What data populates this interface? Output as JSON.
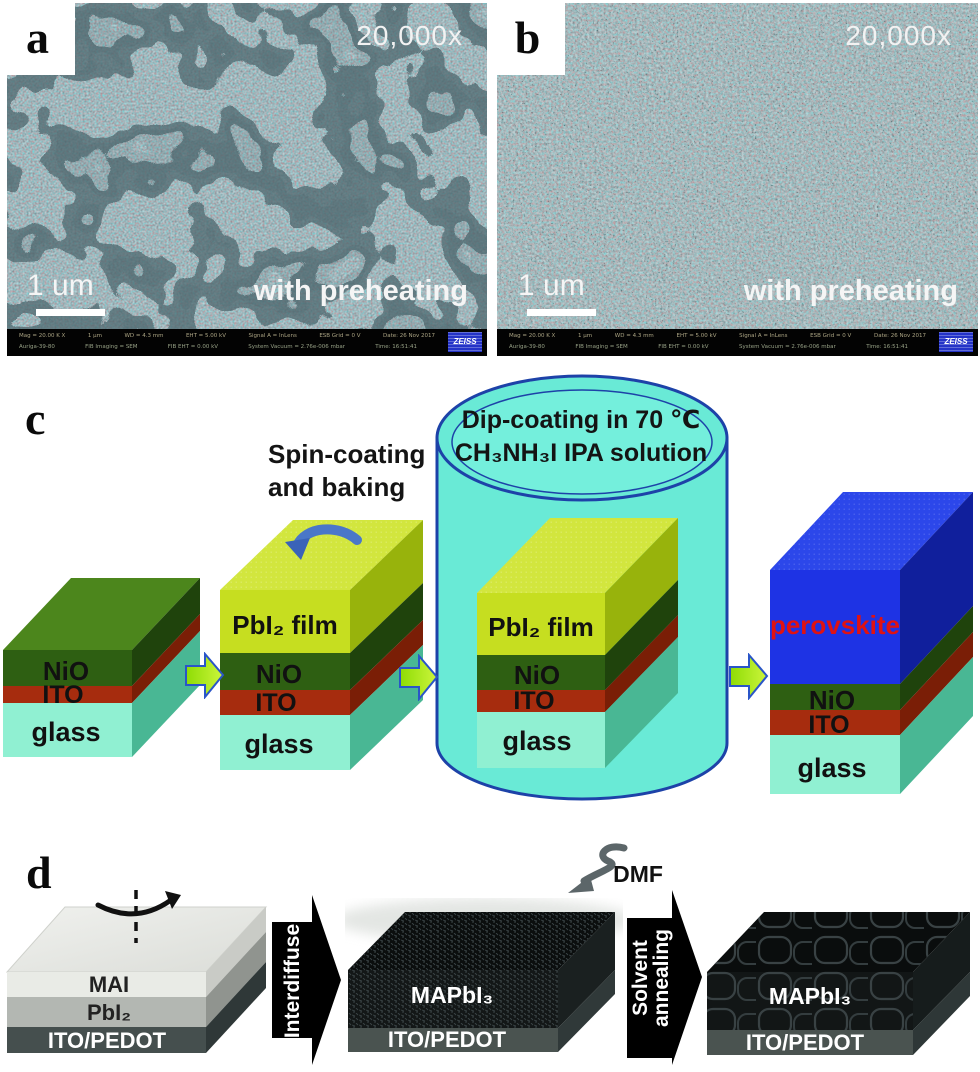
{
  "sem": {
    "a": {
      "label": "a",
      "magnification": "20,000x",
      "scale_label": "1 um",
      "caption": "with preheating"
    },
    "b": {
      "label": "b",
      "magnification": "20,000x",
      "scale_label": "1 um",
      "caption": "with preheating"
    },
    "infobar": {
      "row1": [
        "Mag = 20.00 K X",
        "1 μm",
        "WD = 4.3 mm",
        "EHT = 5.00 kV",
        "Signal A = InLens",
        "ESB Grid = 0 V",
        "Date: 26 Nov 2017"
      ],
      "row2": [
        "Auriga-39-80",
        "FIB Imaging = SEM",
        "FIB EHT = 0.00 kV",
        "System Vacuum = 2.76e-006 mbar",
        "Time: 16:51:41"
      ],
      "zeiss": "ZEISS"
    }
  },
  "panel_c": {
    "label": "c",
    "spin_caption_line1": "Spin-coating",
    "spin_caption_line2": "and baking",
    "dip_caption_line1": "Dip-coating in 70 ℃",
    "dip_caption_line2": "CH₃NH₃I  IPA solution",
    "layer_nio": "NiO",
    "layer_ito": "ITO",
    "layer_glass": "glass",
    "layer_pbi2_film": "PbI₂ film",
    "layer_perovskite": "perovskite"
  },
  "panel_d": {
    "label": "d",
    "layer_mai": "MAI",
    "layer_pbi2": "PbI₂",
    "layer_ito_pedot": "ITO/PEDOT",
    "layer_mapbi3": "MAPbI₃",
    "arrow_interdiffuse": "Interdiffuse",
    "arrow_solvent_line1": "Solvent",
    "arrow_solvent_line2": "annealing",
    "dmf_label": "DMF"
  },
  "colors": {
    "cylinder_fill": "#69ead6",
    "cylinder_outline": "#1d42a8",
    "process_arrow_fill": "#b2ec1c",
    "process_arrow_outline": "#2a55c8",
    "nio_green_front": "#2e5f12",
    "nio_green_top": "#4c861c",
    "ito_red": "#a62c0e",
    "glass_aqua": "#90f0d2",
    "pbi2_yellow": "#c6de20",
    "perovskite_blue": "#1e33e4",
    "perovskite_text_red": "#e01212",
    "sem_base_tint": "#34474d",
    "dark_arrow": "#000000",
    "dmf_arrow_gray": "#5c6669",
    "ito_pedot_slate": "#4a5350"
  }
}
